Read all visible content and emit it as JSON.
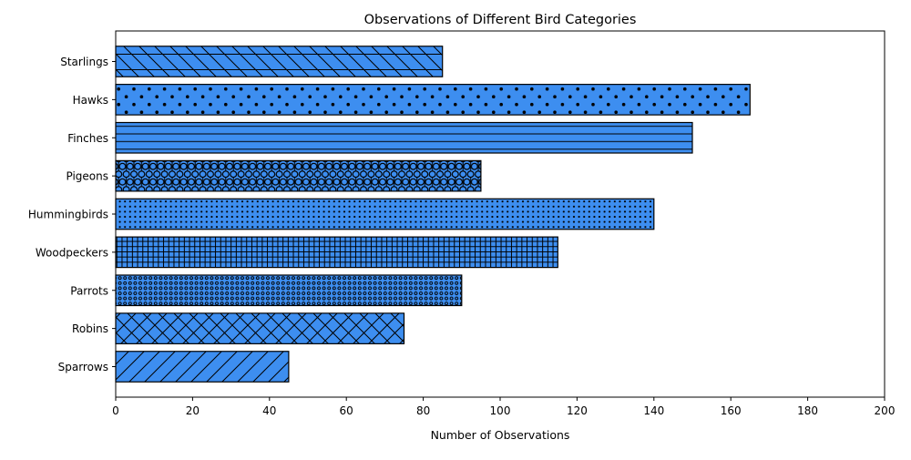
{
  "chart_data": {
    "type": "bar",
    "orientation": "horizontal",
    "title": "Observations of Different Bird Categories",
    "xlabel": "Number of Observations",
    "ylabel": "",
    "xlim": [
      0,
      200
    ],
    "xticks": [
      0,
      20,
      40,
      60,
      80,
      100,
      120,
      140,
      160,
      180,
      200
    ],
    "grid": false,
    "bar_color": "#3d8ef0",
    "edge_color": "#000000",
    "categories": [
      "Sparrows",
      "Robins",
      "Parrots",
      "Woodpeckers",
      "Hummingbirds",
      "Pigeons",
      "Finches",
      "Hawks",
      "Starlings"
    ],
    "values": [
      45,
      75,
      90,
      115,
      140,
      95,
      150,
      165,
      85
    ],
    "hatches": [
      "/",
      "x",
      "o",
      "+",
      ".",
      "O",
      "-",
      "dots",
      "\\-"
    ]
  }
}
